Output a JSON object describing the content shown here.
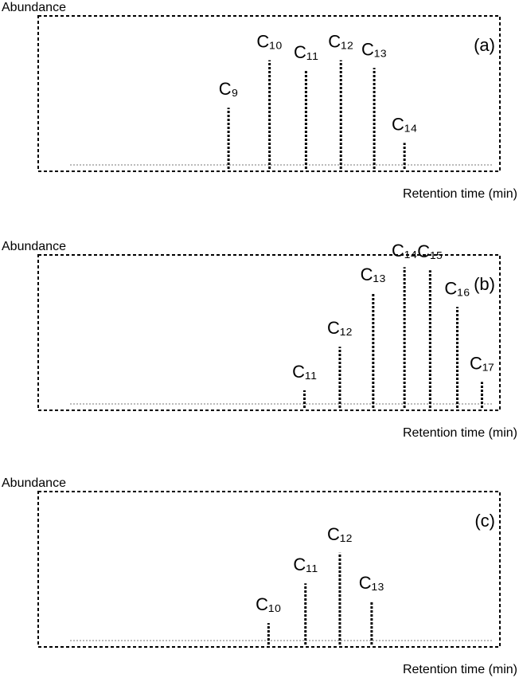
{
  "chart_data": [
    {
      "type": "peaks",
      "y_label": "Abundance",
      "x_label": "Retention time (min)",
      "panel": "(a)",
      "xlim": [
        3.8,
        12.8
      ],
      "ylim": [
        0,
        100
      ],
      "peak_labels": [
        "C₉",
        "C₁₀",
        "C₁₁",
        "C₁₂",
        "C₁₃",
        "C₁₄"
      ],
      "x": [
        7.51,
        8.31,
        9.02,
        9.7,
        10.35,
        10.94
      ],
      "values": [
        40,
        71,
        64,
        71,
        66,
        17
      ]
    },
    {
      "type": "peaks",
      "y_label": "Abundance",
      "x_label": "Retention time (min)",
      "panel": "(b)",
      "xlim": [
        3.8,
        12.8
      ],
      "ylim": [
        0,
        100
      ],
      "peak_labels": [
        "C₁₁",
        "C₁₂",
        "C₁₃",
        "C₁₄",
        "C₁₅",
        "C₁₆",
        "C₁₇"
      ],
      "x": [
        8.99,
        9.68,
        10.33,
        10.94,
        11.44,
        11.97,
        12.45
      ],
      "values": [
        11.5,
        40,
        75,
        92,
        90,
        66,
        17
      ]
    },
    {
      "type": "peaks",
      "y_label": "Abundance",
      "x_label": "Retention time (min)",
      "panel": "(c)",
      "xlim": [
        3.8,
        12.8
      ],
      "ylim": [
        0,
        100
      ],
      "peak_labels": [
        "C₁₀",
        "C₁₁",
        "C₁₂",
        "C₁₃"
      ],
      "x": [
        8.29,
        9.01,
        9.68,
        10.3
      ],
      "values": [
        14,
        40,
        60,
        28
      ]
    }
  ]
}
